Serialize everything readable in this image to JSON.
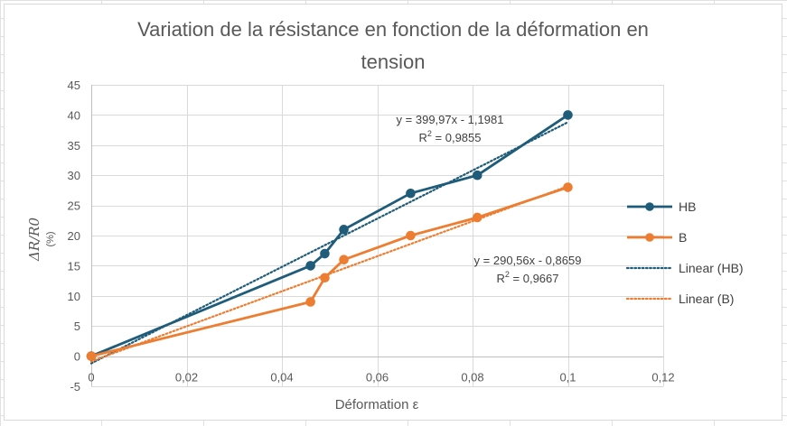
{
  "chart_data": {
    "type": "scatter",
    "title_line1": "Variation de la résistance en fonction de la déformation en",
    "title_line2": "tension",
    "xlabel": "Déformation ε",
    "ylabel_main": "ΔR/R0",
    "ylabel_unit": "(%)",
    "xlim": [
      0,
      0.12
    ],
    "ylim": [
      -5,
      45
    ],
    "x_ticks": [
      0,
      0.02,
      0.04,
      0.06,
      0.08,
      0.1,
      0.12
    ],
    "x_tick_labels": [
      "0",
      "0,02",
      "0,04",
      "0,06",
      "0,08",
      "0,1",
      "0,12"
    ],
    "y_ticks": [
      -5,
      0,
      5,
      10,
      15,
      20,
      25,
      30,
      35,
      40,
      45
    ],
    "y_tick_labels": [
      "-5",
      "0",
      "5",
      "10",
      "15",
      "20",
      "25",
      "30",
      "35",
      "40",
      "45"
    ],
    "grid": true,
    "legend_position": "right",
    "series": [
      {
        "name": "HB",
        "color": "#1f5c7a",
        "x": [
          0,
          0.046,
          0.049,
          0.053,
          0.067,
          0.081,
          0.1
        ],
        "y": [
          0,
          15,
          17,
          21,
          27,
          30,
          40
        ]
      },
      {
        "name": "B",
        "color": "#ed7d31",
        "x": [
          0,
          0.046,
          0.049,
          0.053,
          0.067,
          0.081,
          0.1
        ],
        "y": [
          0,
          9,
          13,
          16,
          20,
          23,
          28
        ]
      }
    ],
    "trendlines": [
      {
        "name": "Linear (HB)",
        "color": "#1f5c7a",
        "slope": 399.97,
        "intercept": -1.1981,
        "x_range": [
          0,
          0.1
        ],
        "equation": "y = 399,97x - 1,1981",
        "r2_prefix": "R",
        "r2_sup": "2",
        "r2_value": " = 0,9855"
      },
      {
        "name": "Linear (B)",
        "color": "#ed7d31",
        "slope": 290.56,
        "intercept": -0.8659,
        "x_range": [
          0,
          0.1
        ],
        "equation": "y = 290,56x - 0,8659",
        "r2_prefix": "R",
        "r2_sup": "2",
        "r2_value": " = 0,9667"
      }
    ]
  }
}
